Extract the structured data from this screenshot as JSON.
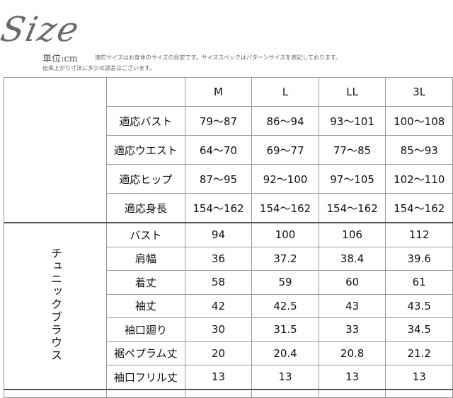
{
  "header": {
    "logo": "Size",
    "unit": "単位:cm",
    "note1": "適応サイズはお身体のサイズの目安です。サイズスペックはパターンサイズを表記しております。",
    "note2": "出来上がり寸法に多少の誤差はございます。"
  },
  "table": {
    "columns": [
      "M",
      "L",
      "LL",
      "3L"
    ],
    "fit_rows": [
      {
        "label": "適応バスト",
        "values": [
          "79〜87",
          "86〜94",
          "93〜101",
          "100〜108"
        ]
      },
      {
        "label": "適応ウエスト",
        "values": [
          "64〜70",
          "69〜77",
          "77〜85",
          "85〜93"
        ]
      },
      {
        "label": "適応ヒップ",
        "values": [
          "87〜95",
          "92〜100",
          "97〜105",
          "102〜110"
        ]
      },
      {
        "label": "適応身長",
        "values": [
          "154〜162",
          "154〜162",
          "154〜162",
          "154〜162"
        ]
      }
    ],
    "group_label": "チュニックブラウス",
    "garment_rows": [
      {
        "label": "バスト",
        "values": [
          "94",
          "100",
          "106",
          "112"
        ]
      },
      {
        "label": "肩幅",
        "values": [
          "36",
          "37.2",
          "38.4",
          "39.6"
        ]
      },
      {
        "label": "着丈",
        "values": [
          "58",
          "59",
          "60",
          "61"
        ]
      },
      {
        "label": "袖丈",
        "values": [
          "42",
          "42.5",
          "43",
          "43.5"
        ]
      },
      {
        "label": "袖口廻り",
        "values": [
          "30",
          "31.5",
          "33",
          "34.5"
        ]
      },
      {
        "label": "裾ペプラム丈",
        "values": [
          "20",
          "20.4",
          "20.8",
          "21.2"
        ]
      },
      {
        "label": "袖口フリル丈",
        "values": [
          "13",
          "13",
          "13",
          "13"
        ]
      }
    ]
  }
}
